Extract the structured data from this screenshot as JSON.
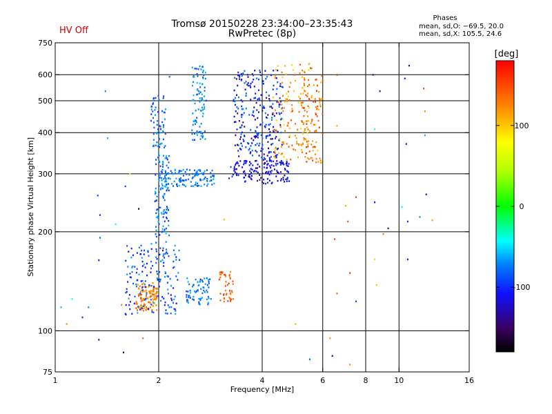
{
  "header": {
    "title_line1": "Tromsø 20150228 23:34:00–23:35:43",
    "title_line2": "RwPretec (8p)",
    "status": "HV Off",
    "phases_title": "Phases",
    "phases_o": "mean, sd,O: −69.5, 20.0",
    "phases_x": "mean, sd,X: 105.5, 24.6"
  },
  "colors": {
    "status": "#cc0000",
    "grid": "#000000",
    "background": "#ffffff"
  },
  "chart_data": {
    "type": "scatter",
    "title": "Tromsø 20150228 23:34:00–23:35:43 RwPretec (8p)",
    "xlabel": "Frequency [MHz]",
    "ylabel": "Stationary phase Virtual Height [km]",
    "xscale": "log",
    "yscale": "log",
    "xlim": [
      1,
      16
    ],
    "ylim": [
      75,
      750
    ],
    "xticks": [
      1,
      2,
      4,
      6,
      8,
      10,
      16
    ],
    "xtick_labels": [
      "1",
      "2",
      "4",
      "6",
      "8",
      "10",
      "16"
    ],
    "yticks": [
      75,
      100,
      200,
      300,
      400,
      500,
      600,
      750
    ],
    "ytick_labels": [
      "75",
      "100",
      "200",
      "300",
      "400",
      "500",
      "600",
      "750"
    ],
    "xgrid": [
      2,
      4,
      6,
      8,
      10
    ],
    "ygrid": [
      100,
      200,
      300,
      400,
      500,
      600
    ],
    "colorbar": {
      "label": "[deg]",
      "range": [
        -180,
        180
      ],
      "ticks": [
        100,
        0,
        -100
      ],
      "tick_labels": [
        "100",
        "0",
        "-100"
      ]
    },
    "clusters": [
      {
        "x_range": [
          1.72,
          1.98
        ],
        "y_range": [
          115,
          140
        ],
        "phase": [
          100,
          150
        ],
        "count": 120
      },
      {
        "x_range": [
          1.6,
          2.3
        ],
        "y_range": [
          112,
          185
        ],
        "phase": [
          -115,
          -60
        ],
        "count": 160
      },
      {
        "x_range": [
          1.95,
          2.15
        ],
        "y_range": [
          170,
          350
        ],
        "phase": [
          -100,
          -55
        ],
        "count": 110
      },
      {
        "x_range": [
          1.9,
          2.1
        ],
        "y_range": [
          360,
          520
        ],
        "phase": [
          -100,
          -60
        ],
        "count": 60
      },
      {
        "x_range": [
          2.0,
          2.9
        ],
        "y_range": [
          275,
          310
        ],
        "phase": [
          -95,
          -55
        ],
        "count": 130
      },
      {
        "x_range": [
          2.4,
          2.85
        ],
        "y_range": [
          120,
          145
        ],
        "phase": [
          -95,
          -55
        ],
        "count": 70
      },
      {
        "x_range": [
          2.5,
          2.75
        ],
        "y_range": [
          380,
          640
        ],
        "phase": [
          -90,
          -55
        ],
        "count": 90
      },
      {
        "x_range": [
          3.0,
          3.3
        ],
        "y_range": [
          122,
          152
        ],
        "phase": [
          120,
          160
        ],
        "count": 45
      },
      {
        "x_range": [
          3.2,
          4.8
        ],
        "y_range": [
          280,
          330
        ],
        "phase": [
          -140,
          -90
        ],
        "count": 150
      },
      {
        "x_range": [
          3.3,
          4.6
        ],
        "y_range": [
          330,
          620
        ],
        "phase": [
          -140,
          -70
        ],
        "count": 260
      },
      {
        "x_range": [
          4.3,
          5.8
        ],
        "y_range": [
          330,
          650
        ],
        "phase": [
          90,
          150
        ],
        "count": 150
      },
      {
        "x_range": [
          5.2,
          6.0
        ],
        "y_range": [
          320,
          600
        ],
        "phase": [
          100,
          160
        ],
        "count": 80
      }
    ],
    "scattered_points": [
      {
        "x": 1.04,
        "y": 118,
        "phase": -60
      },
      {
        "x": 1.08,
        "y": 105,
        "phase": 120
      },
      {
        "x": 1.12,
        "y": 125,
        "phase": -40
      },
      {
        "x": 1.2,
        "y": 110,
        "phase": -100
      },
      {
        "x": 1.25,
        "y": 118,
        "phase": -70
      },
      {
        "x": 1.33,
        "y": 258,
        "phase": -90
      },
      {
        "x": 1.35,
        "y": 225,
        "phase": -100
      },
      {
        "x": 1.35,
        "y": 192,
        "phase": -80
      },
      {
        "x": 1.34,
        "y": 164,
        "phase": -110
      },
      {
        "x": 1.34,
        "y": 94,
        "phase": -130
      },
      {
        "x": 1.4,
        "y": 535,
        "phase": -70
      },
      {
        "x": 1.42,
        "y": 385,
        "phase": -60
      },
      {
        "x": 1.5,
        "y": 211,
        "phase": -40
      },
      {
        "x": 1.56,
        "y": 120,
        "phase": 130
      },
      {
        "x": 1.58,
        "y": 86,
        "phase": -150
      },
      {
        "x": 1.6,
        "y": 275,
        "phase": -90
      },
      {
        "x": 1.65,
        "y": 300,
        "phase": 80
      },
      {
        "x": 1.75,
        "y": 235,
        "phase": -160
      },
      {
        "x": 1.8,
        "y": 95,
        "phase": 140
      },
      {
        "x": 2.15,
        "y": 592,
        "phase": -80
      },
      {
        "x": 3.1,
        "y": 218,
        "phase": 100
      },
      {
        "x": 5.0,
        "y": 105,
        "phase": 110
      },
      {
        "x": 5.5,
        "y": 82,
        "phase": -80
      },
      {
        "x": 6.3,
        "y": 95,
        "phase": 120
      },
      {
        "x": 6.4,
        "y": 84,
        "phase": -130
      },
      {
        "x": 6.5,
        "y": 190,
        "phase": 150
      },
      {
        "x": 6.6,
        "y": 130,
        "phase": 140
      },
      {
        "x": 6.6,
        "y": 420,
        "phase": 110
      },
      {
        "x": 6.6,
        "y": 600,
        "phase": 160
      },
      {
        "x": 7.0,
        "y": 240,
        "phase": 110
      },
      {
        "x": 7.1,
        "y": 215,
        "phase": 150
      },
      {
        "x": 7.2,
        "y": 150,
        "phase": 160
      },
      {
        "x": 7.2,
        "y": 79,
        "phase": 120
      },
      {
        "x": 7.5,
        "y": 123,
        "phase": -90
      },
      {
        "x": 7.5,
        "y": 255,
        "phase": 150
      },
      {
        "x": 8.4,
        "y": 600,
        "phase": -100
      },
      {
        "x": 8.5,
        "y": 410,
        "phase": -40
      },
      {
        "x": 8.5,
        "y": 246,
        "phase": -110
      },
      {
        "x": 8.5,
        "y": 165,
        "phase": 90
      },
      {
        "x": 8.6,
        "y": 138,
        "phase": 100
      },
      {
        "x": 8.8,
        "y": 535,
        "phase": -110
      },
      {
        "x": 9.0,
        "y": 197,
        "phase": 130
      },
      {
        "x": 9.3,
        "y": 205,
        "phase": -150
      },
      {
        "x": 10.2,
        "y": 238,
        "phase": -40
      },
      {
        "x": 10.4,
        "y": 585,
        "phase": -100
      },
      {
        "x": 10.5,
        "y": 370,
        "phase": -110
      },
      {
        "x": 10.6,
        "y": 215,
        "phase": -100
      },
      {
        "x": 10.6,
        "y": 165,
        "phase": -110
      },
      {
        "x": 10.7,
        "y": 640,
        "phase": -130
      },
      {
        "x": 11.5,
        "y": 222,
        "phase": -70
      },
      {
        "x": 11.8,
        "y": 545,
        "phase": 150
      },
      {
        "x": 11.9,
        "y": 465,
        "phase": 120
      },
      {
        "x": 11.9,
        "y": 393,
        "phase": -60
      },
      {
        "x": 12.0,
        "y": 260,
        "phase": -120
      },
      {
        "x": 12.5,
        "y": 217,
        "phase": 110
      }
    ]
  }
}
